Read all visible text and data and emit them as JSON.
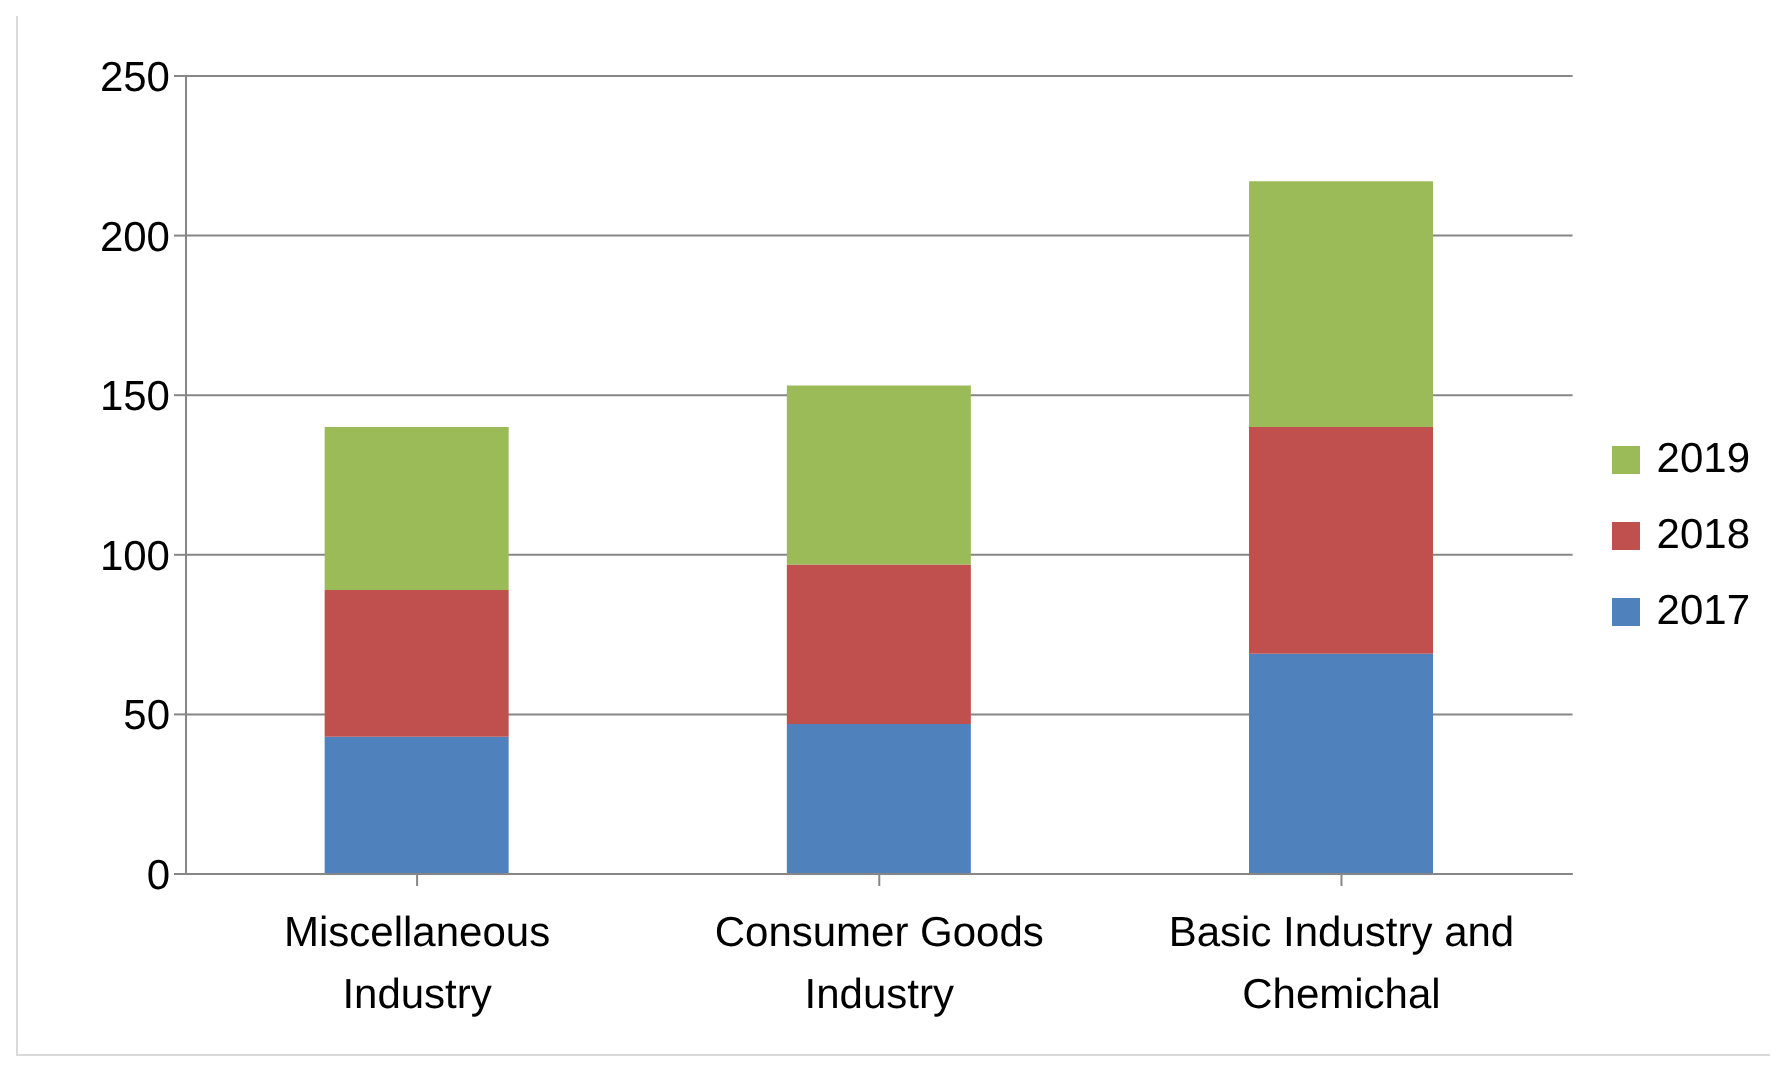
{
  "chart_data": {
    "type": "bar",
    "stacked": true,
    "categories": [
      "Miscellaneous Industry",
      "Consumer Goods Industry",
      "Basic Industry and Chemichal"
    ],
    "series": [
      {
        "name": "2017",
        "color": "#4f81bd",
        "values": [
          43,
          47,
          69
        ]
      },
      {
        "name": "2018",
        "color": "#c0504d",
        "values": [
          46,
          50,
          71
        ]
      },
      {
        "name": "2019",
        "color": "#9bbb59",
        "values": [
          51,
          56,
          77
        ]
      }
    ],
    "ylim": [
      0,
      250
    ],
    "yticks": [
      0,
      50,
      100,
      150,
      200,
      250
    ],
    "grid": "y",
    "legend": "right"
  }
}
